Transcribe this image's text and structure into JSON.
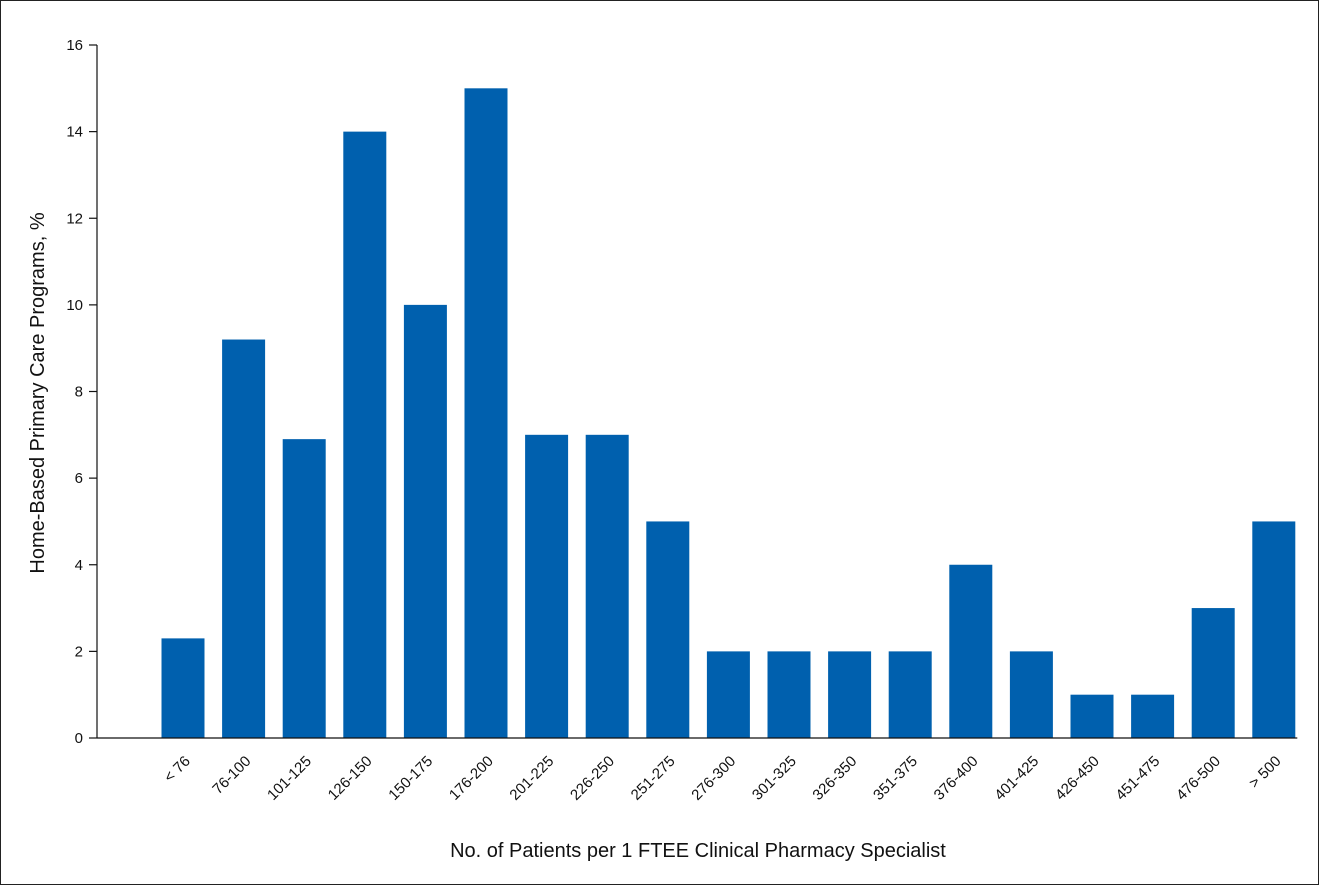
{
  "chart_data": {
    "type": "bar",
    "title": "",
    "xlabel": "No. of Patients per 1 FTEE Clinical Pharmacy Specialist",
    "ylabel": "Home-Based Primary Care Programs, %",
    "ylim": [
      0,
      16
    ],
    "yticks": [
      0,
      2,
      4,
      6,
      8,
      10,
      12,
      14,
      16
    ],
    "grid": false,
    "legend": "none",
    "bar_color": "#0060AE",
    "categories": [
      "< 76",
      "76-100",
      "101-125",
      "126-150",
      "150-175",
      "176-200",
      "201-225",
      "226-250",
      "251-275",
      "276-300",
      "301-325",
      "326-350",
      "351-375",
      "376-400",
      "401-425",
      "426-450",
      "451-475",
      "476-500",
      "> 500"
    ],
    "values": [
      2.3,
      9.2,
      6.9,
      14,
      10,
      15,
      7,
      7,
      5,
      2,
      2,
      2,
      2,
      4,
      2,
      1,
      1,
      3,
      5
    ]
  }
}
